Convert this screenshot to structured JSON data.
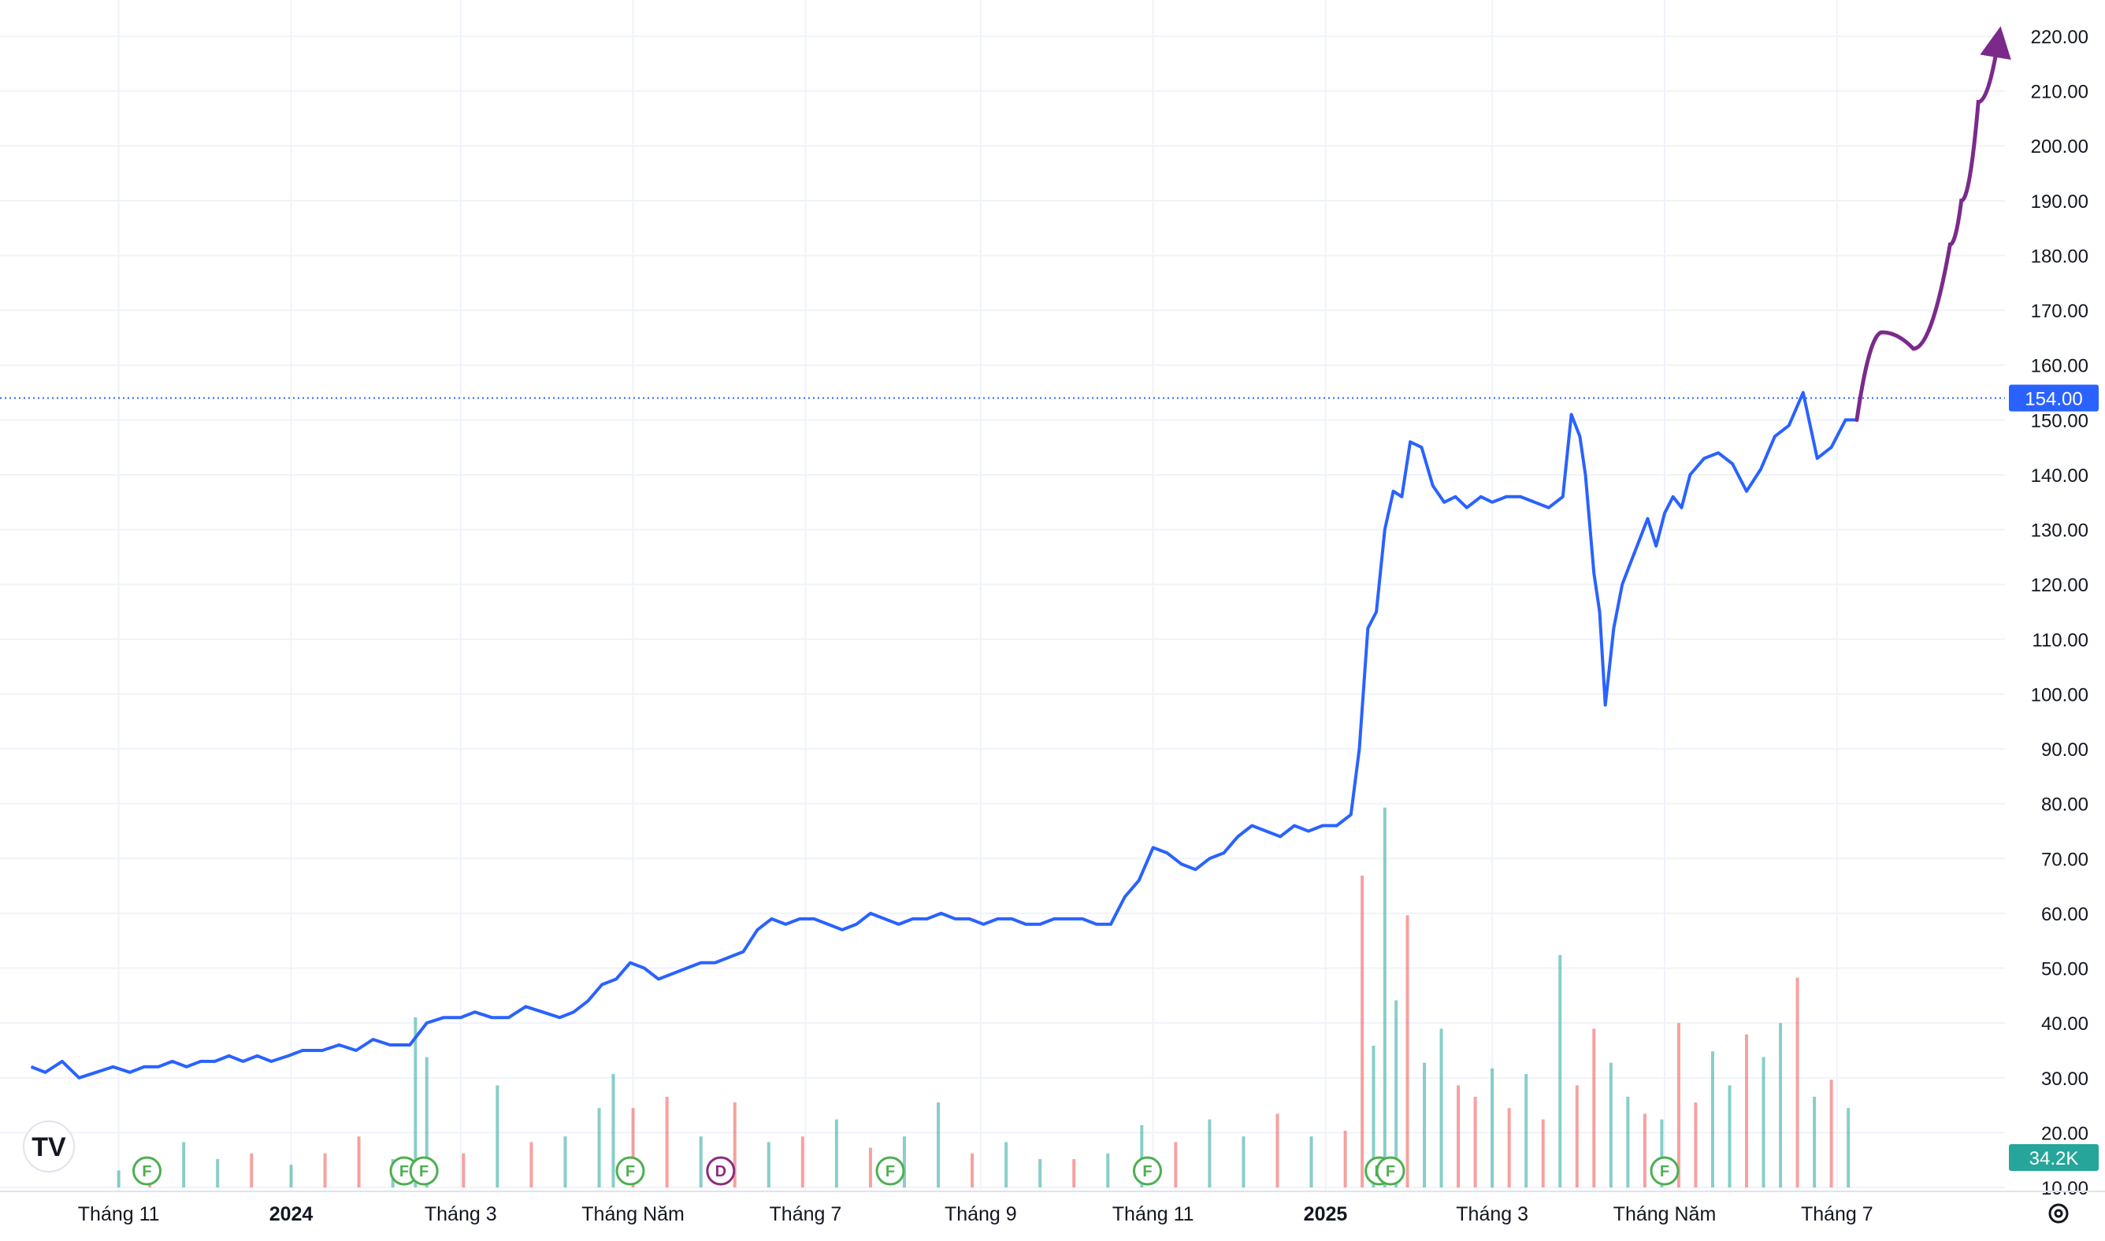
{
  "chart_data": {
    "type": "line",
    "x_ticks": [
      {
        "label": "Tháng 11",
        "date": "2023-11-01",
        "bold": false
      },
      {
        "label": "2024",
        "date": "2024-01-01",
        "bold": true
      },
      {
        "label": "Tháng 3",
        "date": "2024-03-01",
        "bold": false
      },
      {
        "label": "Tháng Năm",
        "date": "2024-05-01",
        "bold": false
      },
      {
        "label": "Tháng 7",
        "date": "2024-07-01",
        "bold": false
      },
      {
        "label": "Tháng 9",
        "date": "2024-09-01",
        "bold": false
      },
      {
        "label": "Tháng 11",
        "date": "2024-11-01",
        "bold": false
      },
      {
        "label": "2025",
        "date": "2025-01-01",
        "bold": true
      },
      {
        "label": "Tháng 3",
        "date": "2025-03-01",
        "bold": false
      },
      {
        "label": "Tháng Năm",
        "date": "2025-05-01",
        "bold": false
      },
      {
        "label": "Tháng 7",
        "date": "2025-07-01",
        "bold": false
      }
    ],
    "y_ticks": [
      "10.00",
      "20.00",
      "30.00",
      "40.00",
      "50.00",
      "60.00",
      "70.00",
      "80.00",
      "90.00",
      "100.00",
      "110.00",
      "120.00",
      "130.00",
      "140.00",
      "150.00",
      "160.00",
      "170.00",
      "180.00",
      "190.00",
      "200.00",
      "210.00",
      "220.00"
    ],
    "ylim": [
      5,
      222
    ],
    "grid": true,
    "series": [
      {
        "kind": "price",
        "color": "#2962ff",
        "points": [
          [
            "2023-10-01",
            32
          ],
          [
            "2023-10-06",
            31
          ],
          [
            "2023-10-12",
            33
          ],
          [
            "2023-10-18",
            30
          ],
          [
            "2023-10-24",
            31
          ],
          [
            "2023-10-30",
            32
          ],
          [
            "2023-11-05",
            31
          ],
          [
            "2023-11-10",
            32
          ],
          [
            "2023-11-15",
            32
          ],
          [
            "2023-11-20",
            33
          ],
          [
            "2023-11-25",
            32
          ],
          [
            "2023-11-30",
            33
          ],
          [
            "2023-12-05",
            33
          ],
          [
            "2023-12-10",
            34
          ],
          [
            "2023-12-15",
            33
          ],
          [
            "2023-12-20",
            34
          ],
          [
            "2023-12-25",
            33
          ],
          [
            "2023-12-31",
            34
          ],
          [
            "2024-01-05",
            35
          ],
          [
            "2024-01-12",
            35
          ],
          [
            "2024-01-18",
            36
          ],
          [
            "2024-01-24",
            35
          ],
          [
            "2024-01-30",
            37
          ],
          [
            "2024-02-05",
            36
          ],
          [
            "2024-02-12",
            36
          ],
          [
            "2024-02-18",
            40
          ],
          [
            "2024-02-24",
            41
          ],
          [
            "2024-03-01",
            41
          ],
          [
            "2024-03-06",
            42
          ],
          [
            "2024-03-12",
            41
          ],
          [
            "2024-03-18",
            41
          ],
          [
            "2024-03-24",
            43
          ],
          [
            "2024-03-30",
            42
          ],
          [
            "2024-04-05",
            41
          ],
          [
            "2024-04-10",
            42
          ],
          [
            "2024-04-15",
            44
          ],
          [
            "2024-04-20",
            47
          ],
          [
            "2024-04-25",
            48
          ],
          [
            "2024-04-30",
            51
          ],
          [
            "2024-05-05",
            50
          ],
          [
            "2024-05-10",
            48
          ],
          [
            "2024-05-15",
            49
          ],
          [
            "2024-05-20",
            50
          ],
          [
            "2024-05-25",
            51
          ],
          [
            "2024-05-30",
            51
          ],
          [
            "2024-06-04",
            52
          ],
          [
            "2024-06-09",
            53
          ],
          [
            "2024-06-14",
            57
          ],
          [
            "2024-06-19",
            59
          ],
          [
            "2024-06-24",
            58
          ],
          [
            "2024-06-29",
            59
          ],
          [
            "2024-07-04",
            59
          ],
          [
            "2024-07-09",
            58
          ],
          [
            "2024-07-14",
            57
          ],
          [
            "2024-07-19",
            58
          ],
          [
            "2024-07-24",
            60
          ],
          [
            "2024-07-29",
            59
          ],
          [
            "2024-08-03",
            58
          ],
          [
            "2024-08-08",
            59
          ],
          [
            "2024-08-13",
            59
          ],
          [
            "2024-08-18",
            60
          ],
          [
            "2024-08-23",
            59
          ],
          [
            "2024-08-28",
            59
          ],
          [
            "2024-09-02",
            58
          ],
          [
            "2024-09-07",
            59
          ],
          [
            "2024-09-12",
            59
          ],
          [
            "2024-09-17",
            58
          ],
          [
            "2024-09-22",
            58
          ],
          [
            "2024-09-27",
            59
          ],
          [
            "2024-10-02",
            59
          ],
          [
            "2024-10-07",
            59
          ],
          [
            "2024-10-12",
            58
          ],
          [
            "2024-10-17",
            58
          ],
          [
            "2024-10-22",
            63
          ],
          [
            "2024-10-27",
            66
          ],
          [
            "2024-11-01",
            72
          ],
          [
            "2024-11-06",
            71
          ],
          [
            "2024-11-11",
            69
          ],
          [
            "2024-11-16",
            68
          ],
          [
            "2024-11-21",
            70
          ],
          [
            "2024-11-26",
            71
          ],
          [
            "2024-12-01",
            74
          ],
          [
            "2024-12-06",
            76
          ],
          [
            "2024-12-11",
            75
          ],
          [
            "2024-12-16",
            74
          ],
          [
            "2024-12-21",
            76
          ],
          [
            "2024-12-26",
            75
          ],
          [
            "2024-12-31",
            76
          ],
          [
            "2025-01-05",
            76
          ],
          [
            "2025-01-10",
            78
          ],
          [
            "2025-01-13",
            90
          ],
          [
            "2025-01-16",
            112
          ],
          [
            "2025-01-19",
            115
          ],
          [
            "2025-01-22",
            130
          ],
          [
            "2025-01-25",
            137
          ],
          [
            "2025-01-28",
            136
          ],
          [
            "2025-01-31",
            146
          ],
          [
            "2025-02-04",
            145
          ],
          [
            "2025-02-08",
            138
          ],
          [
            "2025-02-12",
            135
          ],
          [
            "2025-02-16",
            136
          ],
          [
            "2025-02-20",
            134
          ],
          [
            "2025-02-25",
            136
          ],
          [
            "2025-03-01",
            135
          ],
          [
            "2025-03-06",
            136
          ],
          [
            "2025-03-11",
            136
          ],
          [
            "2025-03-16",
            135
          ],
          [
            "2025-03-21",
            134
          ],
          [
            "2025-03-26",
            136
          ],
          [
            "2025-03-29",
            151
          ],
          [
            "2025-04-01",
            147
          ],
          [
            "2025-04-03",
            140
          ],
          [
            "2025-04-06",
            122
          ],
          [
            "2025-04-08",
            115
          ],
          [
            "2025-04-10",
            98
          ],
          [
            "2025-04-13",
            112
          ],
          [
            "2025-04-16",
            120
          ],
          [
            "2025-04-19",
            124
          ],
          [
            "2025-04-22",
            128
          ],
          [
            "2025-04-25",
            132
          ],
          [
            "2025-04-28",
            127
          ],
          [
            "2025-05-01",
            133
          ],
          [
            "2025-05-04",
            136
          ],
          [
            "2025-05-07",
            134
          ],
          [
            "2025-05-10",
            140
          ],
          [
            "2025-05-15",
            143
          ],
          [
            "2025-05-20",
            144
          ],
          [
            "2025-05-25",
            142
          ],
          [
            "2025-05-30",
            137
          ],
          [
            "2025-06-04",
            141
          ],
          [
            "2025-06-09",
            147
          ],
          [
            "2025-06-14",
            149
          ],
          [
            "2025-06-19",
            155
          ],
          [
            "2025-06-24",
            143
          ],
          [
            "2025-06-29",
            145
          ],
          [
            "2025-07-04",
            150
          ],
          [
            "2025-07-08",
            150
          ]
        ]
      },
      {
        "kind": "projection_arrow",
        "color": "#7b2a8c",
        "points": [
          [
            "2025-07-08",
            150
          ],
          [
            "2025-07-17",
            166
          ],
          [
            "2025-07-28",
            163
          ],
          [
            "2025-08-10",
            182
          ],
          [
            "2025-08-14",
            190
          ],
          [
            "2025-08-20",
            208
          ],
          [
            "2025-08-27",
            219
          ]
        ]
      }
    ],
    "volume": {
      "up_color": "#26a69a",
      "down_color": "#ef5350",
      "bars": [
        [
          "2023-11-01",
          3,
          1
        ],
        [
          "2023-11-12",
          4,
          0
        ],
        [
          "2023-11-24",
          8,
          1
        ],
        [
          "2023-12-06",
          5,
          1
        ],
        [
          "2023-12-18",
          6,
          0
        ],
        [
          "2024-01-01",
          4,
          1
        ],
        [
          "2024-01-13",
          6,
          0
        ],
        [
          "2024-01-25",
          9,
          0
        ],
        [
          "2024-02-06",
          5,
          1
        ],
        [
          "2024-02-14",
          30,
          1
        ],
        [
          "2024-02-18",
          23,
          1
        ],
        [
          "2024-03-02",
          6,
          0
        ],
        [
          "2024-03-14",
          18,
          1
        ],
        [
          "2024-03-26",
          8,
          0
        ],
        [
          "2024-04-07",
          9,
          1
        ],
        [
          "2024-04-19",
          14,
          1
        ],
        [
          "2024-04-24",
          20,
          1
        ],
        [
          "2024-05-01",
          14,
          0
        ],
        [
          "2024-05-13",
          16,
          0
        ],
        [
          "2024-05-25",
          9,
          1
        ],
        [
          "2024-06-06",
          15,
          0
        ],
        [
          "2024-06-18",
          8,
          1
        ],
        [
          "2024-06-30",
          9,
          0
        ],
        [
          "2024-07-12",
          12,
          1
        ],
        [
          "2024-07-24",
          7,
          0
        ],
        [
          "2024-08-05",
          9,
          1
        ],
        [
          "2024-08-17",
          15,
          1
        ],
        [
          "2024-08-29",
          6,
          0
        ],
        [
          "2024-09-10",
          8,
          1
        ],
        [
          "2024-09-22",
          5,
          1
        ],
        [
          "2024-10-04",
          5,
          0
        ],
        [
          "2024-10-16",
          6,
          1
        ],
        [
          "2024-10-28",
          11,
          1
        ],
        [
          "2024-11-09",
          8,
          0
        ],
        [
          "2024-11-21",
          12,
          1
        ],
        [
          "2024-12-03",
          9,
          1
        ],
        [
          "2024-12-15",
          13,
          0
        ],
        [
          "2024-12-27",
          9,
          1
        ],
        [
          "2025-01-08",
          10,
          0
        ],
        [
          "2025-01-14",
          55,
          0
        ],
        [
          "2025-01-18",
          25,
          1
        ],
        [
          "2025-01-22",
          67,
          1
        ],
        [
          "2025-01-26",
          33,
          1
        ],
        [
          "2025-01-30",
          48,
          0
        ],
        [
          "2025-02-05",
          22,
          1
        ],
        [
          "2025-02-11",
          28,
          1
        ],
        [
          "2025-02-17",
          18,
          0
        ],
        [
          "2025-02-23",
          16,
          0
        ],
        [
          "2025-03-01",
          21,
          1
        ],
        [
          "2025-03-07",
          14,
          0
        ],
        [
          "2025-03-13",
          20,
          1
        ],
        [
          "2025-03-19",
          12,
          0
        ],
        [
          "2025-03-25",
          41,
          1
        ],
        [
          "2025-03-31",
          18,
          0
        ],
        [
          "2025-04-06",
          28,
          0
        ],
        [
          "2025-04-12",
          22,
          1
        ],
        [
          "2025-04-18",
          16,
          1
        ],
        [
          "2025-04-24",
          13,
          0
        ],
        [
          "2025-04-30",
          12,
          1
        ],
        [
          "2025-05-06",
          29,
          0
        ],
        [
          "2025-05-12",
          15,
          0
        ],
        [
          "2025-05-18",
          24,
          1
        ],
        [
          "2025-05-24",
          18,
          1
        ],
        [
          "2025-05-30",
          27,
          0
        ],
        [
          "2025-06-05",
          23,
          1
        ],
        [
          "2025-06-11",
          29,
          1
        ],
        [
          "2025-06-17",
          37,
          0
        ],
        [
          "2025-06-23",
          16,
          1
        ],
        [
          "2025-06-29",
          19,
          0
        ],
        [
          "2025-07-05",
          14,
          1
        ]
      ]
    },
    "event_markers": [
      {
        "date": "2023-11-11",
        "label": "F",
        "color": "#4caf50"
      },
      {
        "date": "2024-02-10",
        "label": "F",
        "color": "#4caf50"
      },
      {
        "date": "2024-02-17",
        "label": "F",
        "color": "#4caf50"
      },
      {
        "date": "2024-04-30",
        "label": "F",
        "color": "#4caf50"
      },
      {
        "date": "2024-06-01",
        "label": "D",
        "color": "#8e2a7e"
      },
      {
        "date": "2024-07-31",
        "label": "F",
        "color": "#4caf50"
      },
      {
        "date": "2024-10-30",
        "label": "F",
        "color": "#4caf50"
      },
      {
        "date": "2025-01-20",
        "label": "F",
        "color": "#4caf50"
      },
      {
        "date": "2025-01-24",
        "label": "F",
        "color": "#4caf50"
      },
      {
        "date": "2025-05-01",
        "label": "F",
        "color": "#4caf50"
      }
    ],
    "price_line": {
      "value": 154,
      "label": "154.00",
      "color": "#2962ff"
    },
    "volume_badge": {
      "label": "34.2K",
      "color": "#26a69a"
    }
  },
  "icons": {
    "logo": "tradingview-logo",
    "settings": "settings-gear-icon"
  },
  "logo_text": "TV"
}
